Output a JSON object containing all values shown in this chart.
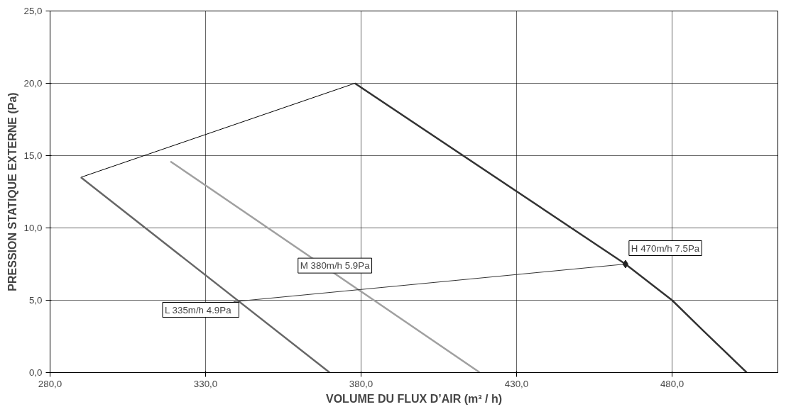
{
  "chart_data": {
    "type": "line",
    "xlabel": "VOLUME DU FLUX D’AIR (m³ / h)",
    "ylabel": "PRESSION STATIQUE EXTERNE (Pa)",
    "xlim": [
      280,
      514
    ],
    "ylim": [
      0,
      25
    ],
    "xticks": [
      {
        "value": 280,
        "label": "280,0"
      },
      {
        "value": 330,
        "label": "330,0"
      },
      {
        "value": 380,
        "label": "380,0"
      },
      {
        "value": 430,
        "label": "430,0"
      },
      {
        "value": 480,
        "label": "480,0"
      }
    ],
    "yticks": [
      {
        "value": 0,
        "label": "0,0"
      },
      {
        "value": 5,
        "label": "5,0"
      },
      {
        "value": 10,
        "label": "10,0"
      },
      {
        "value": 15,
        "label": "15,0"
      },
      {
        "value": 20,
        "label": "20,0"
      },
      {
        "value": 25,
        "label": "25,0"
      }
    ],
    "grid": true,
    "line_style": "solid",
    "marker": "none",
    "series": [
      {
        "color": "#000000",
        "x": [
          289.9,
          378
        ],
        "values": [
          13.5,
          20
        ]
      },
      {
        "color": "#333333",
        "x": [
          378,
          465,
          480,
          490,
          504
        ],
        "values": [
          20,
          7.5,
          5,
          2.9,
          0
        ]
      },
      {
        "color": "#a0a0a0",
        "x": [
          318.7,
          418.2
        ],
        "values": [
          14.6,
          0
        ]
      },
      {
        "color": "#666666",
        "x": [
          289.9,
          369.9
        ],
        "values": [
          13.5,
          0
        ]
      },
      {
        "color": "#333333",
        "x": [
          339,
          465
        ],
        "values": [
          4.9,
          7.5
        ]
      },
      {
        "type": "scatter",
        "marker": "diamond",
        "color": "#222222",
        "x": [
          465
        ],
        "values": [
          7.5
        ]
      }
    ],
    "annotations": [
      {
        "text": "L  335m/h  4.9Pa",
        "x": 339,
        "y": 4.9
      },
      {
        "text": "M 380m/h 5.9Pa",
        "x": 378,
        "y": 5.9
      },
      {
        "text": "H 470m/h 7.5Pa",
        "x": 465,
        "y": 7.5
      }
    ]
  }
}
